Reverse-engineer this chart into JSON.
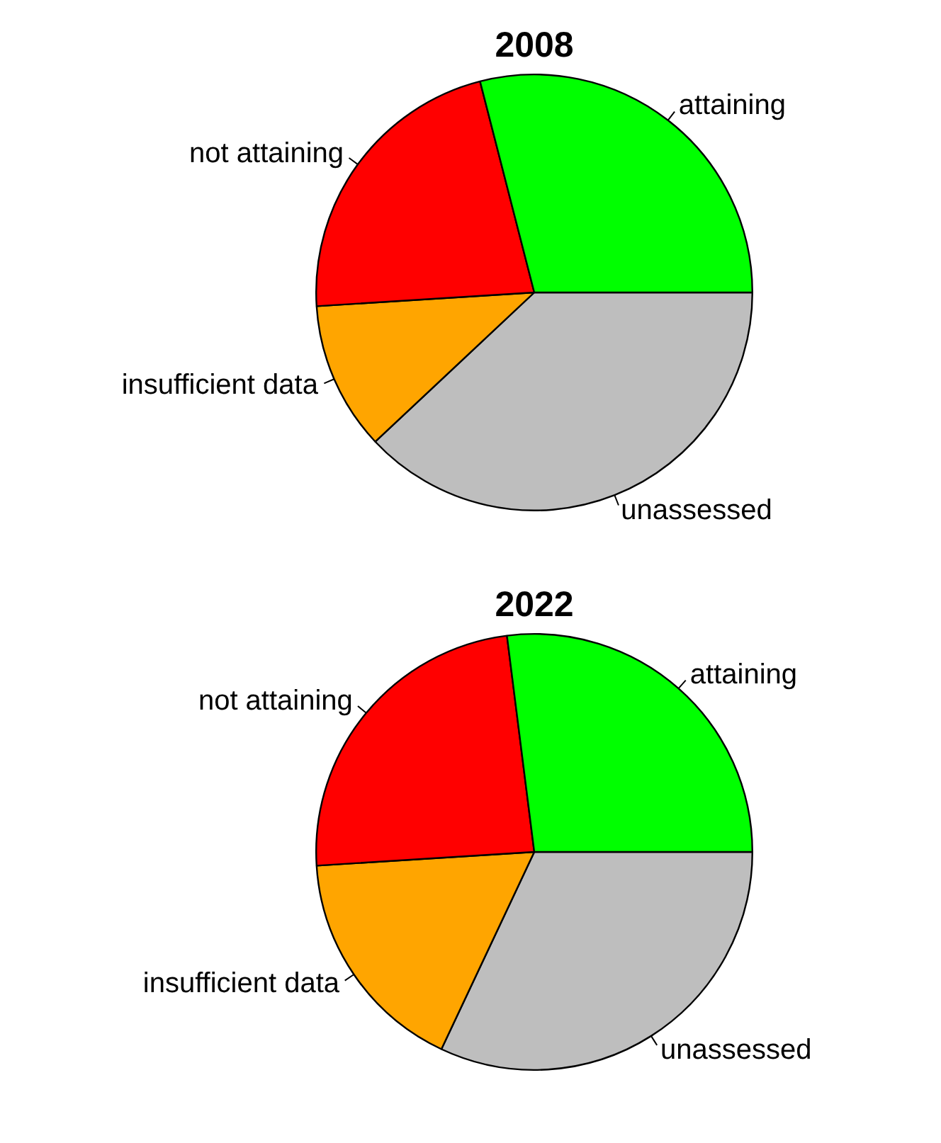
{
  "chart_data": [
    {
      "type": "pie",
      "title": "2008",
      "categories": [
        "attaining",
        "not attaining",
        "insufficient data",
        "unassessed"
      ],
      "values": [
        29,
        22,
        11,
        38
      ],
      "colors": [
        "#00ff00",
        "#ff0000",
        "#ffa500",
        "#bebebe"
      ]
    },
    {
      "type": "pie",
      "title": "2022",
      "categories": [
        "attaining",
        "not attaining",
        "insufficient data",
        "unassessed"
      ],
      "values": [
        27,
        24,
        17,
        32
      ],
      "colors": [
        "#00ff00",
        "#ff0000",
        "#ffa500",
        "#bebebe"
      ]
    }
  ]
}
